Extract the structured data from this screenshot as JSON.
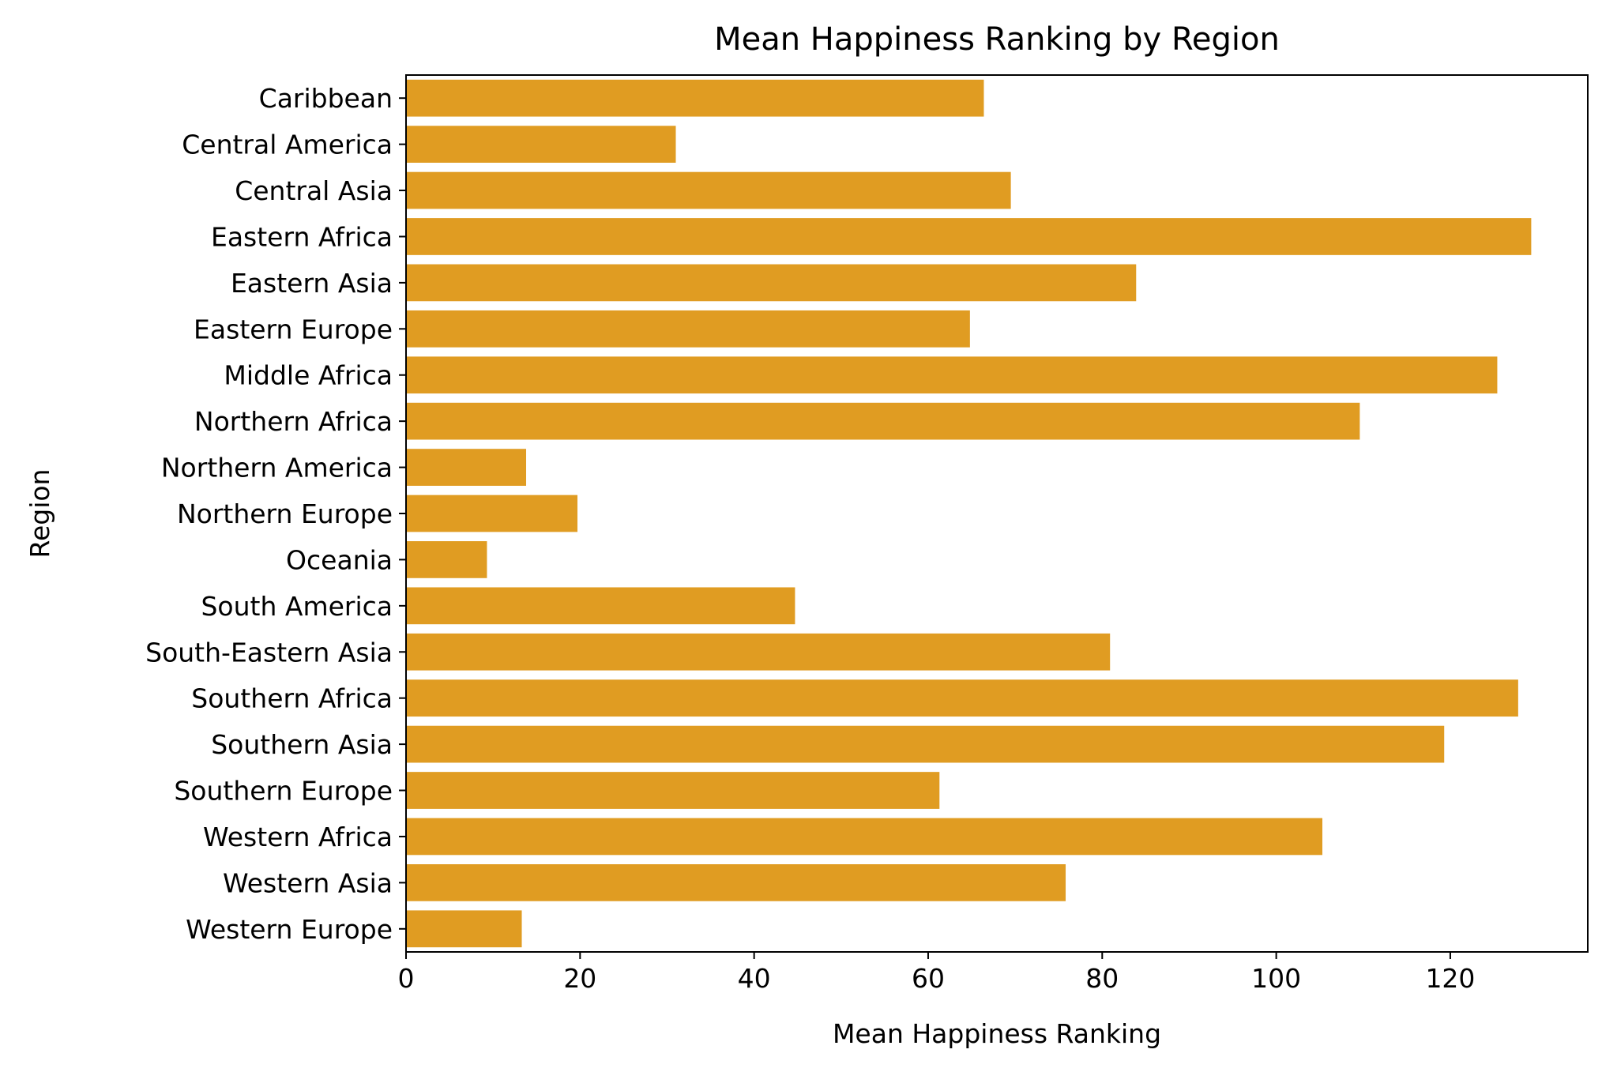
{
  "chart_data": {
    "type": "bar",
    "orientation": "horizontal",
    "title": "Mean Happiness Ranking by Region",
    "xlabel": "Mean Happiness Ranking",
    "ylabel": "Region",
    "categories": [
      "Caribbean",
      "Central America",
      "Central Asia",
      "Eastern Africa",
      "Eastern Asia",
      "Eastern Europe",
      "Middle Africa",
      "Northern Africa",
      "Northern America",
      "Northern Europe",
      "Oceania",
      "South America",
      "South-Eastern Asia",
      "Southern Africa",
      "Southern Asia",
      "Southern Europe",
      "Western Africa",
      "Western Asia",
      "Western Europe"
    ],
    "values": [
      66.4,
      31.0,
      69.5,
      129.3,
      83.9,
      64.8,
      125.4,
      109.6,
      13.8,
      19.7,
      9.3,
      44.7,
      80.9,
      127.8,
      119.3,
      61.3,
      105.3,
      75.8,
      13.3
    ],
    "xlim": [
      0,
      135.8
    ],
    "xticks": [
      0,
      20,
      40,
      60,
      80,
      100,
      120
    ],
    "bar_color": "#e09c22",
    "grid": false,
    "legend": "none"
  }
}
